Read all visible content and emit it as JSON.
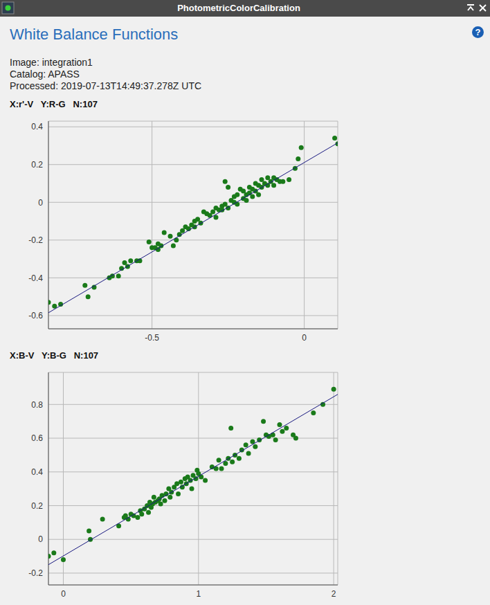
{
  "window": {
    "title": "PhotometricColorCalibration",
    "help": "?"
  },
  "heading": "White Balance Functions",
  "info": [
    "Image: integration1",
    "Catalog: APASS",
    "Processed: 2019-07-13T14:49:37.278Z UTC"
  ],
  "chart_data": [
    {
      "type": "scatter",
      "title": "X:r'-V   Y:R-G   N:107",
      "xlim": [
        -0.84,
        0.11
      ],
      "ylim": [
        -0.67,
        0.43
      ],
      "xticks": [
        -0.5,
        0
      ],
      "yticks": [
        -0.6,
        -0.4,
        -0.2,
        0,
        0.2,
        0.4
      ],
      "grid": true,
      "series": [
        {
          "type": "scatter",
          "color": "#1a7a1a",
          "marker": "circle",
          "x": [
            -0.84,
            -0.82,
            -0.8,
            -0.72,
            -0.71,
            -0.69,
            -0.64,
            -0.63,
            -0.61,
            -0.6,
            -0.59,
            -0.58,
            -0.57,
            -0.55,
            -0.54,
            -0.51,
            -0.5,
            -0.49,
            -0.48,
            -0.48,
            -0.47,
            -0.46,
            -0.44,
            -0.43,
            -0.42,
            -0.41,
            -0.4,
            -0.39,
            -0.38,
            -0.37,
            -0.36,
            -0.36,
            -0.35,
            -0.34,
            -0.33,
            -0.32,
            -0.31,
            -0.3,
            -0.29,
            -0.29,
            -0.28,
            -0.27,
            -0.27,
            -0.26,
            -0.26,
            -0.25,
            -0.25,
            -0.24,
            -0.23,
            -0.23,
            -0.22,
            -0.22,
            -0.21,
            -0.2,
            -0.2,
            -0.19,
            -0.19,
            -0.18,
            -0.18,
            -0.17,
            -0.17,
            -0.16,
            -0.16,
            -0.15,
            -0.15,
            -0.14,
            -0.14,
            -0.13,
            -0.12,
            -0.12,
            -0.11,
            -0.1,
            -0.1,
            -0.09,
            -0.08,
            -0.07,
            -0.05,
            -0.03,
            -0.02,
            -0.01,
            0.1,
            0.11
          ],
          "values": [
            -0.53,
            -0.55,
            -0.54,
            -0.44,
            -0.5,
            -0.45,
            -0.4,
            -0.39,
            -0.39,
            -0.35,
            -0.32,
            -0.34,
            -0.31,
            -0.31,
            -0.31,
            -0.21,
            -0.24,
            -0.24,
            -0.25,
            -0.22,
            -0.23,
            -0.16,
            -0.18,
            -0.23,
            -0.2,
            -0.17,
            -0.15,
            -0.13,
            -0.14,
            -0.12,
            -0.1,
            -0.13,
            -0.09,
            -0.11,
            -0.05,
            -0.06,
            -0.07,
            -0.05,
            -0.03,
            -0.08,
            -0.04,
            -0.02,
            -0.04,
            -0.01,
            0.11,
            0.08,
            -0.03,
            0.01,
            0.0,
            0.03,
            -0.01,
            0.04,
            0.07,
            0.06,
            0.02,
            0.04,
            0.01,
            0.05,
            0.08,
            0.03,
            0.07,
            0.1,
            0.06,
            0.04,
            0.09,
            0.12,
            0.08,
            0.1,
            0.09,
            0.13,
            0.11,
            0.13,
            0.09,
            0.12,
            0.11,
            0.11,
            0.12,
            0.18,
            0.23,
            0.29,
            0.34,
            0.31
          ]
        },
        {
          "type": "line",
          "color": "#1a1a80",
          "line_style": "solid",
          "x": [
            -0.84,
            0.11
          ],
          "values": [
            -0.585,
            0.315
          ]
        }
      ]
    },
    {
      "type": "scatter",
      "title": "X:B-V   Y:B-G   N:107",
      "xlim": [
        -0.11,
        2.03
      ],
      "ylim": [
        -0.27,
        0.99
      ],
      "xticks": [
        0,
        1,
        2
      ],
      "yticks": [
        -0.2,
        0,
        0.2,
        0.4,
        0.6,
        0.8
      ],
      "grid": true,
      "series": [
        {
          "type": "scatter",
          "color": "#1a7a1a",
          "marker": "circle",
          "x": [
            -0.11,
            -0.07,
            0.0,
            0.19,
            0.2,
            0.29,
            0.41,
            0.45,
            0.46,
            0.48,
            0.5,
            0.52,
            0.55,
            0.57,
            0.58,
            0.6,
            0.62,
            0.63,
            0.64,
            0.65,
            0.66,
            0.67,
            0.68,
            0.7,
            0.71,
            0.72,
            0.73,
            0.75,
            0.76,
            0.78,
            0.79,
            0.8,
            0.82,
            0.84,
            0.85,
            0.87,
            0.88,
            0.9,
            0.91,
            0.92,
            0.94,
            0.95,
            0.96,
            0.98,
            0.99,
            1.0,
            1.02,
            1.05,
            1.1,
            1.13,
            1.15,
            1.17,
            1.2,
            1.22,
            1.25,
            1.27,
            1.3,
            1.32,
            1.35,
            1.37,
            1.4,
            1.42,
            1.45,
            1.5,
            1.52,
            1.55,
            1.57,
            1.6,
            1.62,
            1.65,
            1.7,
            1.72,
            1.24,
            1.48,
            1.85,
            1.92,
            2.0
          ],
          "values": [
            -0.1,
            -0.08,
            -0.12,
            0.05,
            0.0,
            0.12,
            0.08,
            0.13,
            0.14,
            0.12,
            0.15,
            0.14,
            0.13,
            0.17,
            0.15,
            0.18,
            0.2,
            0.16,
            0.22,
            0.19,
            0.21,
            0.25,
            0.22,
            0.23,
            0.24,
            0.21,
            0.26,
            0.23,
            0.27,
            0.3,
            0.25,
            0.28,
            0.31,
            0.33,
            0.27,
            0.34,
            0.31,
            0.36,
            0.33,
            0.37,
            0.35,
            0.3,
            0.38,
            0.36,
            0.41,
            0.39,
            0.37,
            0.35,
            0.43,
            0.42,
            0.47,
            0.42,
            0.45,
            0.48,
            0.46,
            0.5,
            0.48,
            0.53,
            0.56,
            0.51,
            0.58,
            0.55,
            0.59,
            0.62,
            0.61,
            0.62,
            0.59,
            0.68,
            0.64,
            0.66,
            0.62,
            0.6,
            0.66,
            0.7,
            0.75,
            0.8,
            0.89
          ]
        },
        {
          "type": "line",
          "color": "#1a1a80",
          "line_style": "solid",
          "x": [
            -0.11,
            2.03
          ],
          "values": [
            -0.15,
            0.86
          ]
        }
      ]
    }
  ]
}
